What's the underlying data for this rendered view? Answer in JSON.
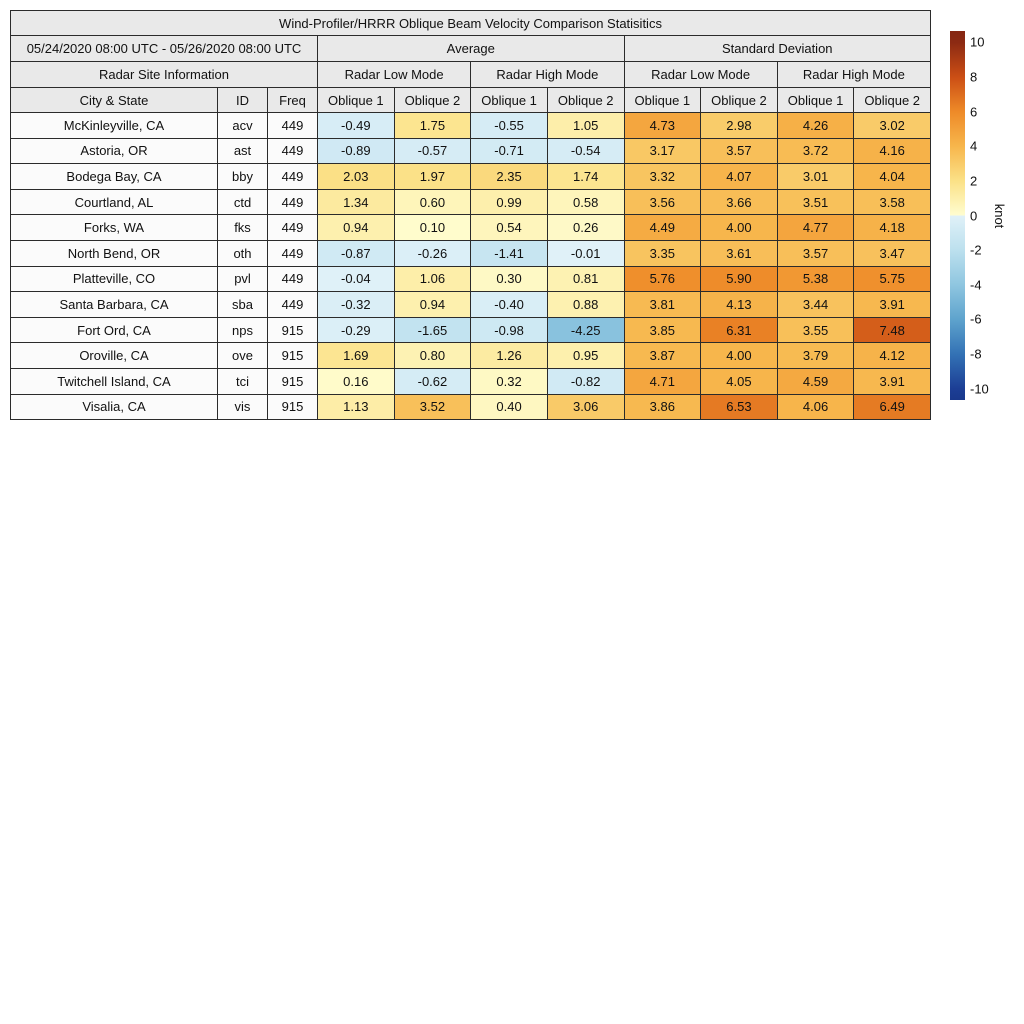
{
  "figure": {
    "title": "Wind-Profiler/HRRR Oblique Beam Velocity Comparison Statisitics",
    "date_range": "05/24/2020 08:00 UTC - 05/26/2020 08:00 UTC",
    "site_info_header": "Radar Site Information",
    "group_headers": [
      "Average",
      "Standard Deviation"
    ],
    "mode_headers": [
      "Radar Low Mode",
      "Radar High Mode"
    ],
    "col_headers": {
      "city": "City & State",
      "id": "ID",
      "freq": "Freq",
      "ob1": "Oblique 1",
      "ob2": "Oblique 2"
    }
  },
  "colorbar": {
    "label": "knot",
    "ticks": [
      10,
      8,
      6,
      4,
      2,
      0,
      -2,
      -4,
      -6,
      -8,
      -10
    ],
    "vmin": -10.65,
    "vmax": 10.65,
    "stops_positive": [
      [
        0,
        "#FFFDD0"
      ],
      [
        2,
        "#FBE187"
      ],
      [
        4,
        "#F7B64C"
      ],
      [
        6,
        "#EE8A28"
      ],
      [
        8,
        "#CB4E15"
      ],
      [
        10,
        "#8C2A13"
      ],
      [
        10.65,
        "#852611"
      ]
    ],
    "stops_negative": [
      [
        0,
        "#E0F1F8"
      ],
      [
        -2,
        "#BCE0EE"
      ],
      [
        -4,
        "#8FC6E0"
      ],
      [
        -6,
        "#5EA3CD"
      ],
      [
        -8,
        "#3372B5"
      ],
      [
        -10,
        "#1C3E95"
      ],
      [
        -10.65,
        "#19388C"
      ]
    ]
  },
  "chart_data": {
    "type": "heatmap",
    "title": "Wind-Profiler/HRRR Oblique Beam Velocity Comparison Statisitics",
    "date_range": "05/24/2020 08:00 UTC - 05/26/2020 08:00 UTC",
    "units": "knot",
    "color_range": [
      -10,
      10
    ],
    "legend_position": "right-colorbar",
    "columns": [
      "City & State",
      "ID",
      "Freq",
      "Average / Radar Low Mode / Oblique 1",
      "Average / Radar Low Mode / Oblique 2",
      "Average / Radar High Mode / Oblique 1",
      "Average / Radar High Mode / Oblique 2",
      "Standard Deviation / Radar Low Mode / Oblique 1",
      "Standard Deviation / Radar Low Mode / Oblique 2",
      "Standard Deviation / Radar High Mode / Oblique 1",
      "Standard Deviation / Radar High Mode / Oblique 2"
    ],
    "rows": [
      {
        "city": "McKinleyville, CA",
        "id": "acv",
        "freq": "449",
        "values": [
          "-0.49",
          "1.75",
          "-0.55",
          "1.05",
          "4.73",
          "2.98",
          "4.26",
          "3.02"
        ]
      },
      {
        "city": "Astoria, OR",
        "id": "ast",
        "freq": "449",
        "values": [
          "-0.89",
          "-0.57",
          "-0.71",
          "-0.54",
          "3.17",
          "3.57",
          "3.72",
          "4.16"
        ]
      },
      {
        "city": "Bodega Bay, CA",
        "id": "bby",
        "freq": "449",
        "values": [
          "2.03",
          "1.97",
          "2.35",
          "1.74",
          "3.32",
          "4.07",
          "3.01",
          "4.04"
        ]
      },
      {
        "city": "Courtland, AL",
        "id": "ctd",
        "freq": "449",
        "values": [
          "1.34",
          "0.60",
          "0.99",
          "0.58",
          "3.56",
          "3.66",
          "3.51",
          "3.58"
        ]
      },
      {
        "city": "Forks, WA",
        "id": "fks",
        "freq": "449",
        "values": [
          "0.94",
          "0.10",
          "0.54",
          "0.26",
          "4.49",
          "4.00",
          "4.77",
          "4.18"
        ]
      },
      {
        "city": "North Bend, OR",
        "id": "oth",
        "freq": "449",
        "values": [
          "-0.87",
          "-0.26",
          "-1.41",
          "-0.01",
          "3.35",
          "3.61",
          "3.57",
          "3.47"
        ]
      },
      {
        "city": "Platteville, CO",
        "id": "pvl",
        "freq": "449",
        "values": [
          "-0.04",
          "1.06",
          "0.30",
          "0.81",
          "5.76",
          "5.90",
          "5.38",
          "5.75"
        ]
      },
      {
        "city": "Santa Barbara, CA",
        "id": "sba",
        "freq": "449",
        "values": [
          "-0.32",
          "0.94",
          "-0.40",
          "0.88",
          "3.81",
          "4.13",
          "3.44",
          "3.91"
        ]
      },
      {
        "city": "Fort Ord, CA",
        "id": "nps",
        "freq": "915",
        "values": [
          "-0.29",
          "-1.65",
          "-0.98",
          "-4.25",
          "3.85",
          "6.31",
          "3.55",
          "7.48"
        ]
      },
      {
        "city": "Oroville, CA",
        "id": "ove",
        "freq": "915",
        "values": [
          "1.69",
          "0.80",
          "1.26",
          "0.95",
          "3.87",
          "4.00",
          "3.79",
          "4.12"
        ]
      },
      {
        "city": "Twitchell Island, CA",
        "id": "tci",
        "freq": "915",
        "values": [
          "0.16",
          "-0.62",
          "0.32",
          "-0.82",
          "4.71",
          "4.05",
          "4.59",
          "3.91"
        ]
      },
      {
        "city": "Visalia, CA",
        "id": "vis",
        "freq": "915",
        "values": [
          "1.13",
          "3.52",
          "0.40",
          "3.06",
          "3.86",
          "6.53",
          "4.06",
          "6.49"
        ]
      }
    ]
  }
}
